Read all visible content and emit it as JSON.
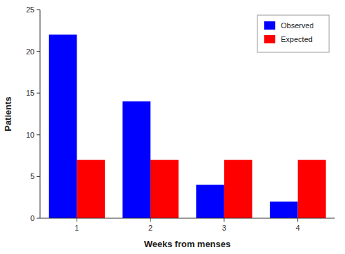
{
  "chart_data": {
    "type": "bar",
    "xlabel": "Weeks from menses",
    "ylabel": "Patients",
    "categories": [
      "1",
      "2",
      "3",
      "4"
    ],
    "series": [
      {
        "name": "Observed",
        "color": "#0000FF",
        "values": [
          22,
          14,
          4,
          2
        ]
      },
      {
        "name": "Expected",
        "color": "#FF0000",
        "values": [
          7,
          7,
          7,
          7
        ]
      }
    ],
    "ylim": [
      0,
      25
    ],
    "yticks": [
      0,
      5,
      10,
      15,
      20,
      25
    ],
    "legend": "upper right",
    "grid": false
  }
}
